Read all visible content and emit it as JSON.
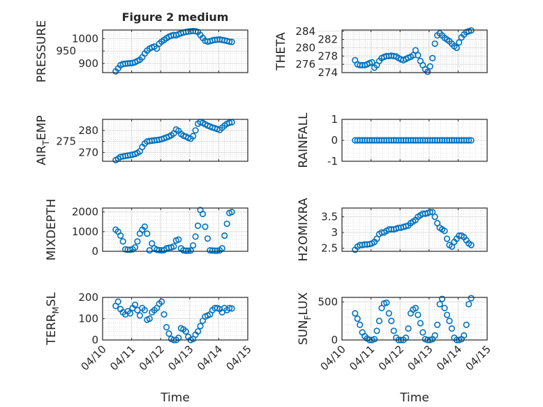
{
  "figure": {
    "title": "Figure 2 medium",
    "xlabel": "Time"
  },
  "colors": {
    "marker": "#0072BD",
    "axes": "#262626",
    "grid_major": "#dcdcdc",
    "grid_minor": "#c8c8c8"
  },
  "chart_data": [
    {
      "type": "scatter",
      "id": "pressure",
      "ylabel": "PRESSURE",
      "ylabel_sub": "",
      "ylabel_rest": "",
      "ylim": [
        863,
        1035
      ],
      "yticks": [
        900,
        950,
        1000
      ],
      "ytick_labels": [
        "900",
        "950",
        "1000"
      ],
      "values": [
        868,
        880,
        893,
        898,
        899,
        900,
        901,
        902,
        905,
        910,
        915,
        925,
        940,
        952,
        960,
        965,
        968,
        960,
        980,
        988,
        995,
        1002,
        1008,
        1012,
        1015,
        1014,
        1018,
        1022,
        1025,
        1027,
        1029,
        1030,
        1031,
        1030,
        1027,
        1015,
        1003,
        992,
        988,
        990,
        993,
        995,
        996,
        997,
        995,
        993,
        991,
        988,
        987
      ]
    },
    {
      "type": "scatter",
      "id": "theta",
      "ylabel": "THETA",
      "ylabel_sub": "",
      "ylabel_rest": "",
      "ylim": [
        274,
        284.3
      ],
      "yticks": [
        274,
        276,
        278,
        280,
        282,
        284
      ],
      "ytick_labels": [
        "274",
        "276",
        "278",
        "280",
        "282",
        "284"
      ],
      "values": [
        277,
        276,
        275.8,
        275.8,
        275.8,
        276,
        276.3,
        276.5,
        275.2,
        275.8,
        276.8,
        277.5,
        277.8,
        278,
        278,
        278.1,
        278,
        277.9,
        277.5,
        277.2,
        277,
        277.3,
        277.6,
        277.8,
        278.2,
        279.4,
        278.2,
        276.8,
        275.8,
        274.8,
        274.2,
        275.5,
        277.5,
        281,
        283,
        283.5,
        283,
        282.4,
        282,
        281.6,
        281,
        280.4,
        280,
        281.3,
        282.5,
        283.2,
        283.8,
        284,
        284.2
      ]
    },
    {
      "type": "scatter",
      "id": "air-temp",
      "ylabel": "AIR",
      "ylabel_sub": "T",
      "ylabel_rest": "EMP",
      "ylim": [
        266,
        285
      ],
      "yticks": [
        270,
        275,
        280
      ],
      "ytick_labels": [
        "270",
        "275",
        "280"
      ],
      "values": [
        266.5,
        267.2,
        268,
        268.2,
        268.4,
        268.6,
        268.8,
        269,
        269.3,
        269.8,
        270.5,
        272.5,
        274,
        275,
        275.2,
        275.3,
        275.5,
        275.6,
        275.8,
        276,
        276.4,
        276.8,
        277.2,
        277.8,
        278.6,
        280.4,
        279.8,
        278.4,
        277.6,
        277.2,
        276.6,
        276.2,
        277.4,
        280,
        283,
        283.8,
        283.4,
        282.8,
        282.2,
        281.8,
        281.3,
        281,
        280.6,
        280.2,
        281.2,
        282.2,
        283,
        283.5,
        283.7
      ]
    },
    {
      "type": "scatter",
      "id": "rainfall",
      "ylabel": "RAINFALL",
      "ylabel_sub": "",
      "ylabel_rest": "",
      "ylim": [
        -1,
        1
      ],
      "yticks": [
        -1,
        0,
        1
      ],
      "ytick_labels": [
        "-1",
        "0",
        "1"
      ],
      "values": [
        0,
        0,
        0,
        0,
        0,
        0,
        0,
        0,
        0,
        0,
        0,
        0,
        0,
        0,
        0,
        0,
        0,
        0,
        0,
        0,
        0,
        0,
        0,
        0,
        0,
        0,
        0,
        0,
        0,
        0,
        0,
        0,
        0,
        0,
        0,
        0,
        0,
        0,
        0,
        0,
        0,
        0,
        0,
        0,
        0,
        0,
        0,
        0,
        0
      ]
    },
    {
      "type": "scatter",
      "id": "mixdepth",
      "ylabel": "MIXDEPTH",
      "ylabel_sub": "",
      "ylabel_rest": "",
      "ylim": [
        0,
        2200
      ],
      "yticks": [
        0,
        1000,
        2000
      ],
      "ytick_labels": [
        "0",
        "1000",
        "2000"
      ],
      "values": [
        1100,
        1000,
        800,
        500,
        100,
        80,
        80,
        100,
        200,
        500,
        900,
        1100,
        1250,
        900,
        50,
        400,
        150,
        80,
        60,
        50,
        60,
        150,
        180,
        200,
        250,
        550,
        600,
        150,
        50,
        30,
        30,
        40,
        300,
        750,
        1300,
        2100,
        1900,
        1250,
        650,
        50,
        40,
        30,
        30,
        50,
        150,
        800,
        1400,
        1950,
        2000
      ]
    },
    {
      "type": "scatter",
      "id": "h2omixra",
      "ylabel": "H2OMIXRA",
      "ylabel_sub": "",
      "ylabel_rest": "",
      "ylim": [
        2.4,
        3.78
      ],
      "yticks": [
        2.5,
        3,
        3.5
      ],
      "ytick_labels": [
        "2.5",
        "3",
        "3.5"
      ],
      "values": [
        2.45,
        2.55,
        2.6,
        2.6,
        2.62,
        2.62,
        2.63,
        2.65,
        2.7,
        2.8,
        2.95,
        3.0,
        3.0,
        3.05,
        3.1,
        3.1,
        3.1,
        3.12,
        3.15,
        3.15,
        3.18,
        3.2,
        3.22,
        3.3,
        3.35,
        3.4,
        3.5,
        3.55,
        3.6,
        3.6,
        3.62,
        3.65,
        3.65,
        3.5,
        3.3,
        3.15,
        3.1,
        3.05,
        2.8,
        2.6,
        2.55,
        2.7,
        2.8,
        2.9,
        2.9,
        2.85,
        2.75,
        2.65,
        2.6
      ]
    },
    {
      "type": "scatter",
      "id": "terr-msl",
      "ylabel": "TERR",
      "ylabel_sub": "M",
      "ylabel_rest": "SL",
      "ylim": [
        0,
        200
      ],
      "yticks": [
        0,
        100,
        200
      ],
      "ytick_labels": [
        "0",
        "100",
        "200"
      ],
      "values": [
        160,
        180,
        145,
        130,
        120,
        135,
        125,
        150,
        165,
        140,
        115,
        150,
        140,
        95,
        100,
        130,
        140,
        150,
        170,
        180,
        120,
        60,
        30,
        5,
        0,
        0,
        10,
        55,
        50,
        40,
        15,
        0,
        5,
        25,
        40,
        65,
        90,
        110,
        115,
        120,
        140,
        150,
        150,
        145,
        130,
        150,
        140,
        150,
        148
      ]
    },
    {
      "type": "scatter",
      "id": "sun-flux",
      "ylabel": "SUN",
      "ylabel_sub": "F",
      "ylabel_rest": "LUX",
      "ylim": [
        0,
        560
      ],
      "yticks": [
        0,
        500
      ],
      "ytick_labels": [
        "0",
        "500"
      ],
      "values": [
        350,
        280,
        200,
        100,
        50,
        20,
        0,
        0,
        10,
        120,
        250,
        420,
        480,
        490,
        350,
        250,
        120,
        30,
        0,
        0,
        0,
        30,
        150,
        350,
        400,
        420,
        330,
        220,
        100,
        10,
        0,
        0,
        10,
        60,
        200,
        470,
        540,
        420,
        330,
        250,
        150,
        30,
        0,
        0,
        10,
        60,
        200,
        470,
        550
      ]
    }
  ],
  "x_axis": {
    "start_day": 0.45,
    "step_hours": 2,
    "xlim_days": [
      0,
      5
    ],
    "tick_labels": [
      "04/10",
      "04/11",
      "04/12",
      "04/13",
      "04/14",
      "04/15"
    ]
  }
}
